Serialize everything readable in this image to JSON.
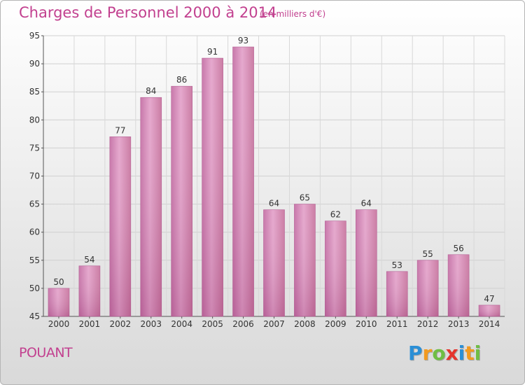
{
  "chart_data": {
    "type": "bar",
    "title": "Charges de Personnel 2000 à 2014",
    "subtitle": "(en milliers d'€)",
    "categories": [
      "2000",
      "2001",
      "2002",
      "2003",
      "2004",
      "2005",
      "2006",
      "2007",
      "2008",
      "2009",
      "2010",
      "2011",
      "2012",
      "2013",
      "2014"
    ],
    "values": [
      50,
      54,
      77,
      84,
      86,
      91,
      93,
      64,
      65,
      62,
      64,
      53,
      55,
      56,
      47
    ],
    "ylim": [
      45,
      95
    ],
    "yticks": [
      45,
      50,
      55,
      60,
      65,
      70,
      75,
      80,
      85,
      90,
      95
    ],
    "grid": true,
    "bar_color": "#d98bbb",
    "bar_color_light": "#e8a9cf",
    "bar_color_dark": "#c0699f"
  },
  "commune": "POUANT",
  "logo": {
    "letters": [
      "P",
      "r",
      "o",
      "x",
      "i",
      "t",
      "i"
    ],
    "colors": [
      "#2b8fd6",
      "#f29a1f",
      "#6fbe44",
      "#e5342d",
      "#2b8fd6",
      "#f29a1f",
      "#6fbe44"
    ]
  },
  "colors": {
    "text_accent": "#c2408f"
  }
}
